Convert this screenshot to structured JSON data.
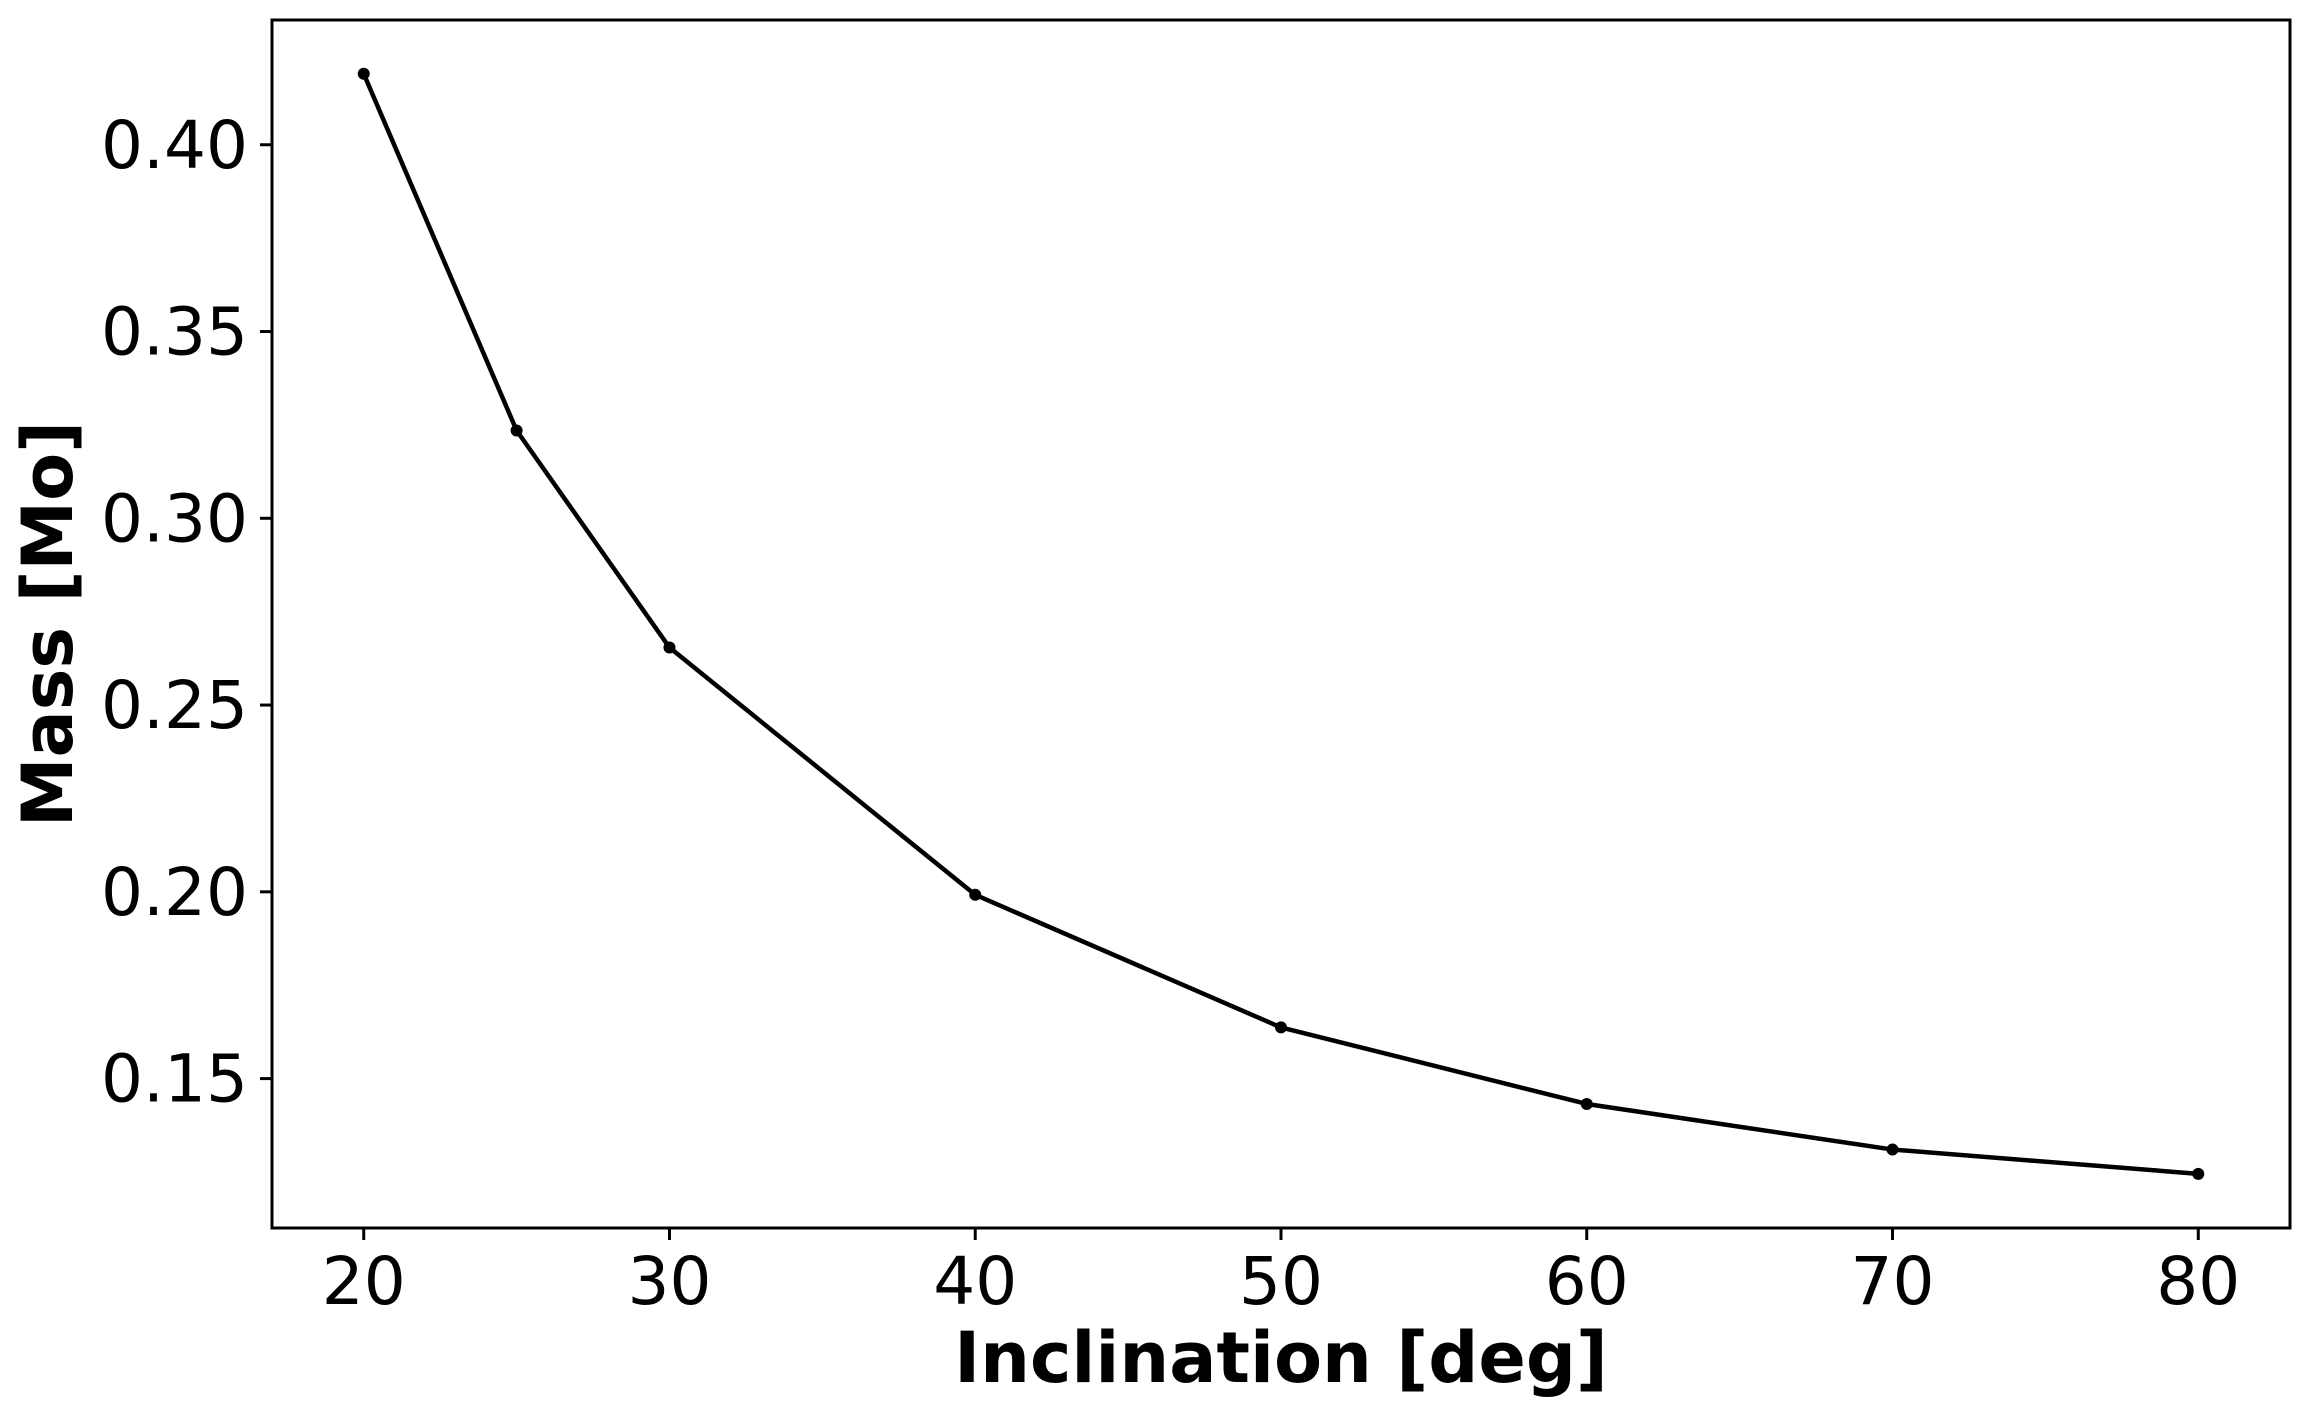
{
  "chart_data": {
    "type": "line",
    "title": "",
    "xlabel": "Inclination [deg]",
    "ylabel": "Mass [Mo]",
    "xlim": [
      17,
      83
    ],
    "ylim": [
      0.11,
      0.4334
    ],
    "xticks": [
      20,
      30,
      40,
      50,
      60,
      70,
      80
    ],
    "xtick_labels": [
      "20",
      "30",
      "40",
      "50",
      "60",
      "70",
      "80"
    ],
    "yticks": [
      0.15,
      0.2,
      0.25,
      0.3,
      0.35,
      0.4
    ],
    "ytick_labels": [
      "0.15",
      "0.20",
      "0.25",
      "0.30",
      "0.35",
      "0.40"
    ],
    "grid": false,
    "legend": "none",
    "series": [
      {
        "color": "#000000",
        "marker": "dot",
        "x": [
          20,
          25,
          30,
          40,
          50,
          60,
          70,
          80
        ],
        "y": [
          0.419,
          0.3235,
          0.2654,
          0.1992,
          0.1637,
          0.1432,
          0.131,
          0.1245
        ]
      }
    ]
  }
}
